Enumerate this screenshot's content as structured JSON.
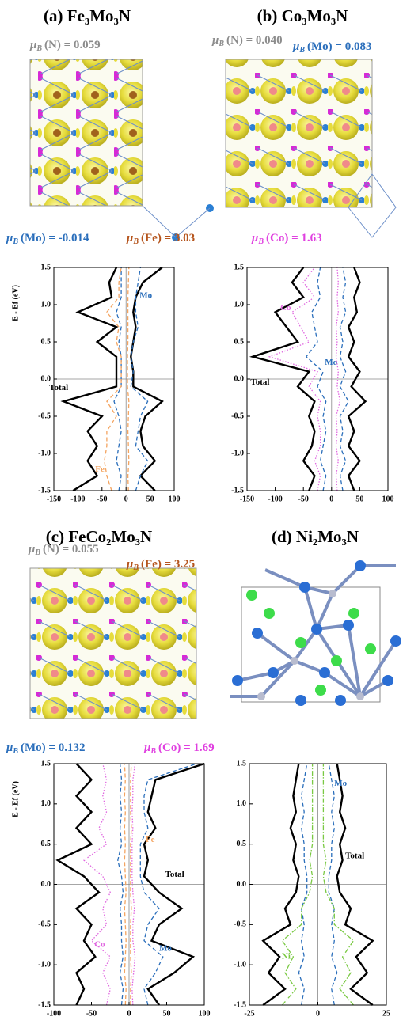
{
  "panels": [
    {
      "title": "(a) Fe₃Mo₃N",
      "annotations": [
        {
          "symbol": "μ",
          "sub": "B",
          "text": "(N) = 0.059",
          "color": "#8c8c8c"
        },
        {
          "symbol": "μ",
          "sub": "B",
          "text": "(Mo) = -0.014",
          "color": "#2a6ebb"
        },
        {
          "symbol": "μ",
          "sub": "B",
          "text": "(Fe) = 3.03",
          "color": "#b5541c"
        }
      ]
    },
    {
      "title": "(b) Co₃Mo₃N",
      "annotations": [
        {
          "symbol": "μ",
          "sub": "B",
          "text": "(N) = 0.040",
          "color": "#8c8c8c"
        },
        {
          "symbol": "μ",
          "sub": "B",
          "text": "(Mo) = 0.083",
          "color": "#2a6ebb"
        },
        {
          "symbol": "μ",
          "sub": "B",
          "text": "(Co) = 1.63",
          "color": "#e040e0"
        }
      ]
    },
    {
      "title": "(c) FeCo₂Mo₃N",
      "annotations": [
        {
          "symbol": "μ",
          "sub": "B",
          "text": "(N) = 0.055",
          "color": "#8c8c8c"
        },
        {
          "symbol": "μ",
          "sub": "B",
          "text": "(Fe) = 3.25",
          "color": "#b5541c"
        },
        {
          "symbol": "μ",
          "sub": "B",
          "text": "(Mo) = 0.132",
          "color": "#2a6ebb"
        },
        {
          "symbol": "μ",
          "sub": "B",
          "text": "(Co) = 1.69",
          "color": "#e040e0"
        }
      ]
    },
    {
      "title": "(d) Ni₂Mo₃N",
      "annotations": []
    }
  ],
  "chart_data": [
    {
      "type": "line",
      "ylabel": "E - Ef (eV)",
      "xlim": [
        -150,
        100
      ],
      "xticks": [
        -150,
        -100,
        -50,
        0,
        50,
        100
      ],
      "ylim": [
        -1.5,
        1.5
      ],
      "yticks": [
        -1.5,
        {
          "value": -1,
          "label": "-1.0"
        },
        -0.5,
        {
          "value": 0,
          "label": "0.0"
        },
        0.5,
        {
          "value": 1,
          "label": "1.0"
        },
        1.5
      ],
      "energy": [
        -1.5,
        -1.3,
        -1.1,
        -0.9,
        -0.7,
        -0.5,
        -0.3,
        -0.1,
        0.1,
        0.3,
        0.5,
        0.7,
        0.9,
        1.1,
        1.3,
        1.5
      ],
      "series": [
        {
          "name": "Total",
          "color": "#000000",
          "line_style": "solid",
          "values": [
            60,
            30,
            60,
            35,
            30,
            40,
            75,
            15,
            15,
            10,
            15,
            20,
            15,
            20,
            35,
            75
          ]
        },
        {
          "color": "#000000",
          "line_style": "solid",
          "values": [
            -110,
            -60,
            -80,
            -60,
            -80,
            -50,
            -130,
            -20,
            -20,
            -20,
            -60,
            -20,
            -100,
            -30,
            -35,
            -20
          ]
        },
        {
          "name": "Mo",
          "color": "#2a6ebb",
          "line_style": "dashed",
          "values": [
            20,
            30,
            45,
            20,
            25,
            30,
            45,
            10,
            15,
            10,
            15,
            25,
            20,
            20,
            25,
            30
          ]
        },
        {
          "color": "#2a6ebb",
          "line_style": "dashed",
          "values": [
            -15,
            -10,
            -20,
            -15,
            -10,
            -15,
            -25,
            -10,
            -10,
            -10,
            -15,
            -10,
            -20,
            -10,
            -10,
            -10
          ]
        },
        {
          "name": "Fe",
          "color": "#f4a460",
          "line_style": "dashed",
          "values": [
            -30,
            -40,
            -45,
            -40,
            -40,
            -20,
            -40,
            -10,
            -10,
            -10,
            -20,
            -15,
            -40,
            -15,
            -15,
            -10
          ]
        },
        {
          "color": "#f4a460",
          "line_style": "dashed",
          "values": [
            5,
            4,
            6,
            5,
            4,
            5,
            6,
            3,
            3,
            3,
            4,
            4,
            4,
            4,
            5,
            6
          ]
        }
      ]
    },
    {
      "type": "line",
      "xlim": [
        -150,
        100
      ],
      "xticks": [
        -150,
        -100,
        -50,
        0,
        50,
        100
      ],
      "ylim": [
        -1.5,
        1.5
      ],
      "yticks": [
        -1.5,
        {
          "value": -1,
          "label": "-1.0"
        },
        -0.5,
        {
          "value": 0,
          "label": "0.0"
        },
        0.5,
        {
          "value": 1,
          "label": "1.0"
        },
        1.5
      ],
      "energy": [
        -1.5,
        -1.3,
        -1.1,
        -0.9,
        -0.7,
        -0.5,
        -0.3,
        -0.1,
        0.1,
        0.3,
        0.5,
        0.7,
        0.9,
        1.1,
        1.3,
        1.5
      ],
      "series": [
        {
          "name": "Total",
          "color": "#000000",
          "line_style": "solid",
          "values": [
            40,
            30,
            50,
            30,
            40,
            30,
            60,
            35,
            50,
            30,
            40,
            30,
            45,
            40,
            50,
            40
          ]
        },
        {
          "color": "#000000",
          "line_style": "solid",
          "values": [
            -40,
            -30,
            -50,
            -35,
            -30,
            -40,
            -30,
            -60,
            -40,
            -140,
            -60,
            -80,
            -100,
            -50,
            -70,
            -50
          ]
        },
        {
          "name": "Mo",
          "color": "#2a6ebb",
          "line_style": "dashed",
          "values": [
            20,
            15,
            25,
            15,
            20,
            15,
            30,
            15,
            25,
            15,
            20,
            15,
            25,
            20,
            25,
            20
          ]
        },
        {
          "color": "#2a6ebb",
          "line_style": "dashed",
          "values": [
            -15,
            -10,
            -20,
            -15,
            -10,
            -15,
            -10,
            -25,
            -15,
            -45,
            -25,
            -30,
            -35,
            -20,
            -25,
            -20
          ]
        },
        {
          "name": "Co",
          "color": "#e066e0",
          "line_style": "dotted",
          "values": [
            -25,
            -20,
            -30,
            -20,
            -20,
            -25,
            -20,
            -40,
            -25,
            -110,
            -40,
            -55,
            -70,
            -30,
            -50,
            -30
          ]
        },
        {
          "color": "#e066e0",
          "line_style": "dotted",
          "values": [
            10,
            8,
            12,
            8,
            10,
            8,
            15,
            10,
            12,
            8,
            10,
            8,
            12,
            10,
            12,
            10
          ]
        }
      ]
    },
    {
      "type": "line",
      "ylabel": "E - Ef (eV)",
      "xlim": [
        -100,
        100
      ],
      "xticks": [
        -100,
        -50,
        0,
        50,
        100
      ],
      "ylim": [
        -1.5,
        1.5
      ],
      "yticks": [
        -1.5,
        {
          "value": -1,
          "label": "-1.0"
        },
        -0.5,
        {
          "value": 0,
          "label": "0.0"
        },
        0.5,
        {
          "value": 1,
          "label": "1.0"
        },
        1.5
      ],
      "energy": [
        -1.5,
        -1.3,
        -1.1,
        -0.9,
        -0.7,
        -0.5,
        -0.3,
        -0.1,
        0.1,
        0.3,
        0.5,
        0.7,
        0.9,
        1.1,
        1.3,
        1.5
      ],
      "series": [
        {
          "name": "Total",
          "color": "#000000",
          "line_style": "solid",
          "values": [
            40,
            25,
            60,
            85,
            30,
            40,
            70,
            40,
            20,
            25,
            20,
            35,
            25,
            30,
            35,
            100
          ]
        },
        {
          "color": "#000000",
          "line_style": "solid",
          "values": [
            -70,
            -60,
            -70,
            -45,
            -60,
            -50,
            -70,
            -40,
            -60,
            -95,
            -50,
            -70,
            -50,
            -70,
            -50,
            -70
          ]
        },
        {
          "name": "Mo",
          "color": "#2a6ebb",
          "line_style": "dashed",
          "values": [
            25,
            20,
            35,
            45,
            20,
            25,
            40,
            20,
            15,
            15,
            15,
            25,
            20,
            20,
            25,
            90
          ]
        },
        {
          "color": "#2a6ebb",
          "line_style": "dashed",
          "values": [
            -10,
            -8,
            -12,
            -8,
            -10,
            -10,
            -12,
            -8,
            -10,
            -15,
            -10,
            -12,
            -10,
            -12,
            -10,
            -12
          ]
        },
        {
          "name": "Co",
          "color": "#e066e0",
          "line_style": "dotted",
          "values": [
            -30,
            -25,
            -35,
            -25,
            -50,
            -30,
            -35,
            -25,
            -35,
            -60,
            -30,
            -40,
            -30,
            -35,
            -30,
            -35
          ]
        },
        {
          "color": "#e066e0",
          "line_style": "dotted",
          "values": [
            5,
            4,
            6,
            8,
            5,
            5,
            7,
            5,
            4,
            4,
            4,
            5,
            4,
            5,
            5,
            8
          ]
        },
        {
          "name": "Fe",
          "color": "#f4a460",
          "line_style": "dashed",
          "values": [
            -5,
            -4,
            -6,
            -5,
            -4,
            -5,
            -6,
            -4,
            -5,
            -6,
            -5,
            -6,
            -5,
            -6,
            -5,
            -6
          ]
        },
        {
          "color": "#f4a460",
          "line_style": "dashed",
          "values": [
            2,
            2,
            3,
            2,
            2,
            2,
            3,
            2,
            2,
            2,
            2,
            3,
            2,
            2,
            2,
            3
          ]
        }
      ]
    },
    {
      "type": "line",
      "xlim": [
        -25,
        25
      ],
      "xticks": [
        -25,
        0,
        25
      ],
      "ylim": [
        -1.5,
        1.5
      ],
      "yticks": [
        -1.5,
        {
          "value": -1,
          "label": "-1.0"
        },
        -0.5,
        {
          "value": 0,
          "label": "0.0"
        },
        0.5,
        {
          "value": 1,
          "label": "1.0"
        },
        1.5
      ],
      "energy": [
        -1.5,
        -1.3,
        -1.1,
        -0.9,
        -0.7,
        -0.5,
        -0.3,
        -0.1,
        0.1,
        0.3,
        0.5,
        0.7,
        0.9,
        1.1,
        1.3,
        1.5
      ],
      "series": [
        {
          "name": "Total",
          "color": "#000000",
          "line_style": "solid",
          "values": [
            20,
            12,
            18,
            14,
            20,
            10,
            12,
            8,
            7,
            9,
            8,
            10,
            8,
            9,
            8,
            7
          ]
        },
        {
          "color": "#000000",
          "line_style": "solid",
          "values": [
            -20,
            -12,
            -18,
            -14,
            -20,
            -10,
            -12,
            -8,
            -7,
            -9,
            -8,
            -10,
            -8,
            -9,
            -8,
            -7
          ]
        },
        {
          "name": "Mo",
          "color": "#2a6ebb",
          "line_style": "dashed",
          "values": [
            6,
            5,
            7,
            5,
            6,
            5,
            6,
            4,
            4,
            5,
            5,
            6,
            5,
            6,
            5,
            4
          ]
        },
        {
          "color": "#2a6ebb",
          "line_style": "dashed",
          "values": [
            -6,
            -5,
            -7,
            -5,
            -6,
            -5,
            -6,
            -4,
            -4,
            -5,
            -5,
            -6,
            -5,
            -6,
            -5,
            -4
          ]
        },
        {
          "name": "Ni",
          "color": "#7ac943",
          "line_style": "dashdot",
          "values": [
            -13,
            -8,
            -12,
            -9,
            -13,
            -6,
            -6,
            -3,
            -2,
            -3,
            -2,
            -2,
            -2,
            -2,
            -2,
            -2
          ]
        },
        {
          "color": "#7ac943",
          "line_style": "dashdot",
          "values": [
            13,
            8,
            12,
            9,
            13,
            6,
            6,
            3,
            2,
            3,
            2,
            2,
            2,
            2,
            2,
            2
          ]
        }
      ]
    }
  ]
}
